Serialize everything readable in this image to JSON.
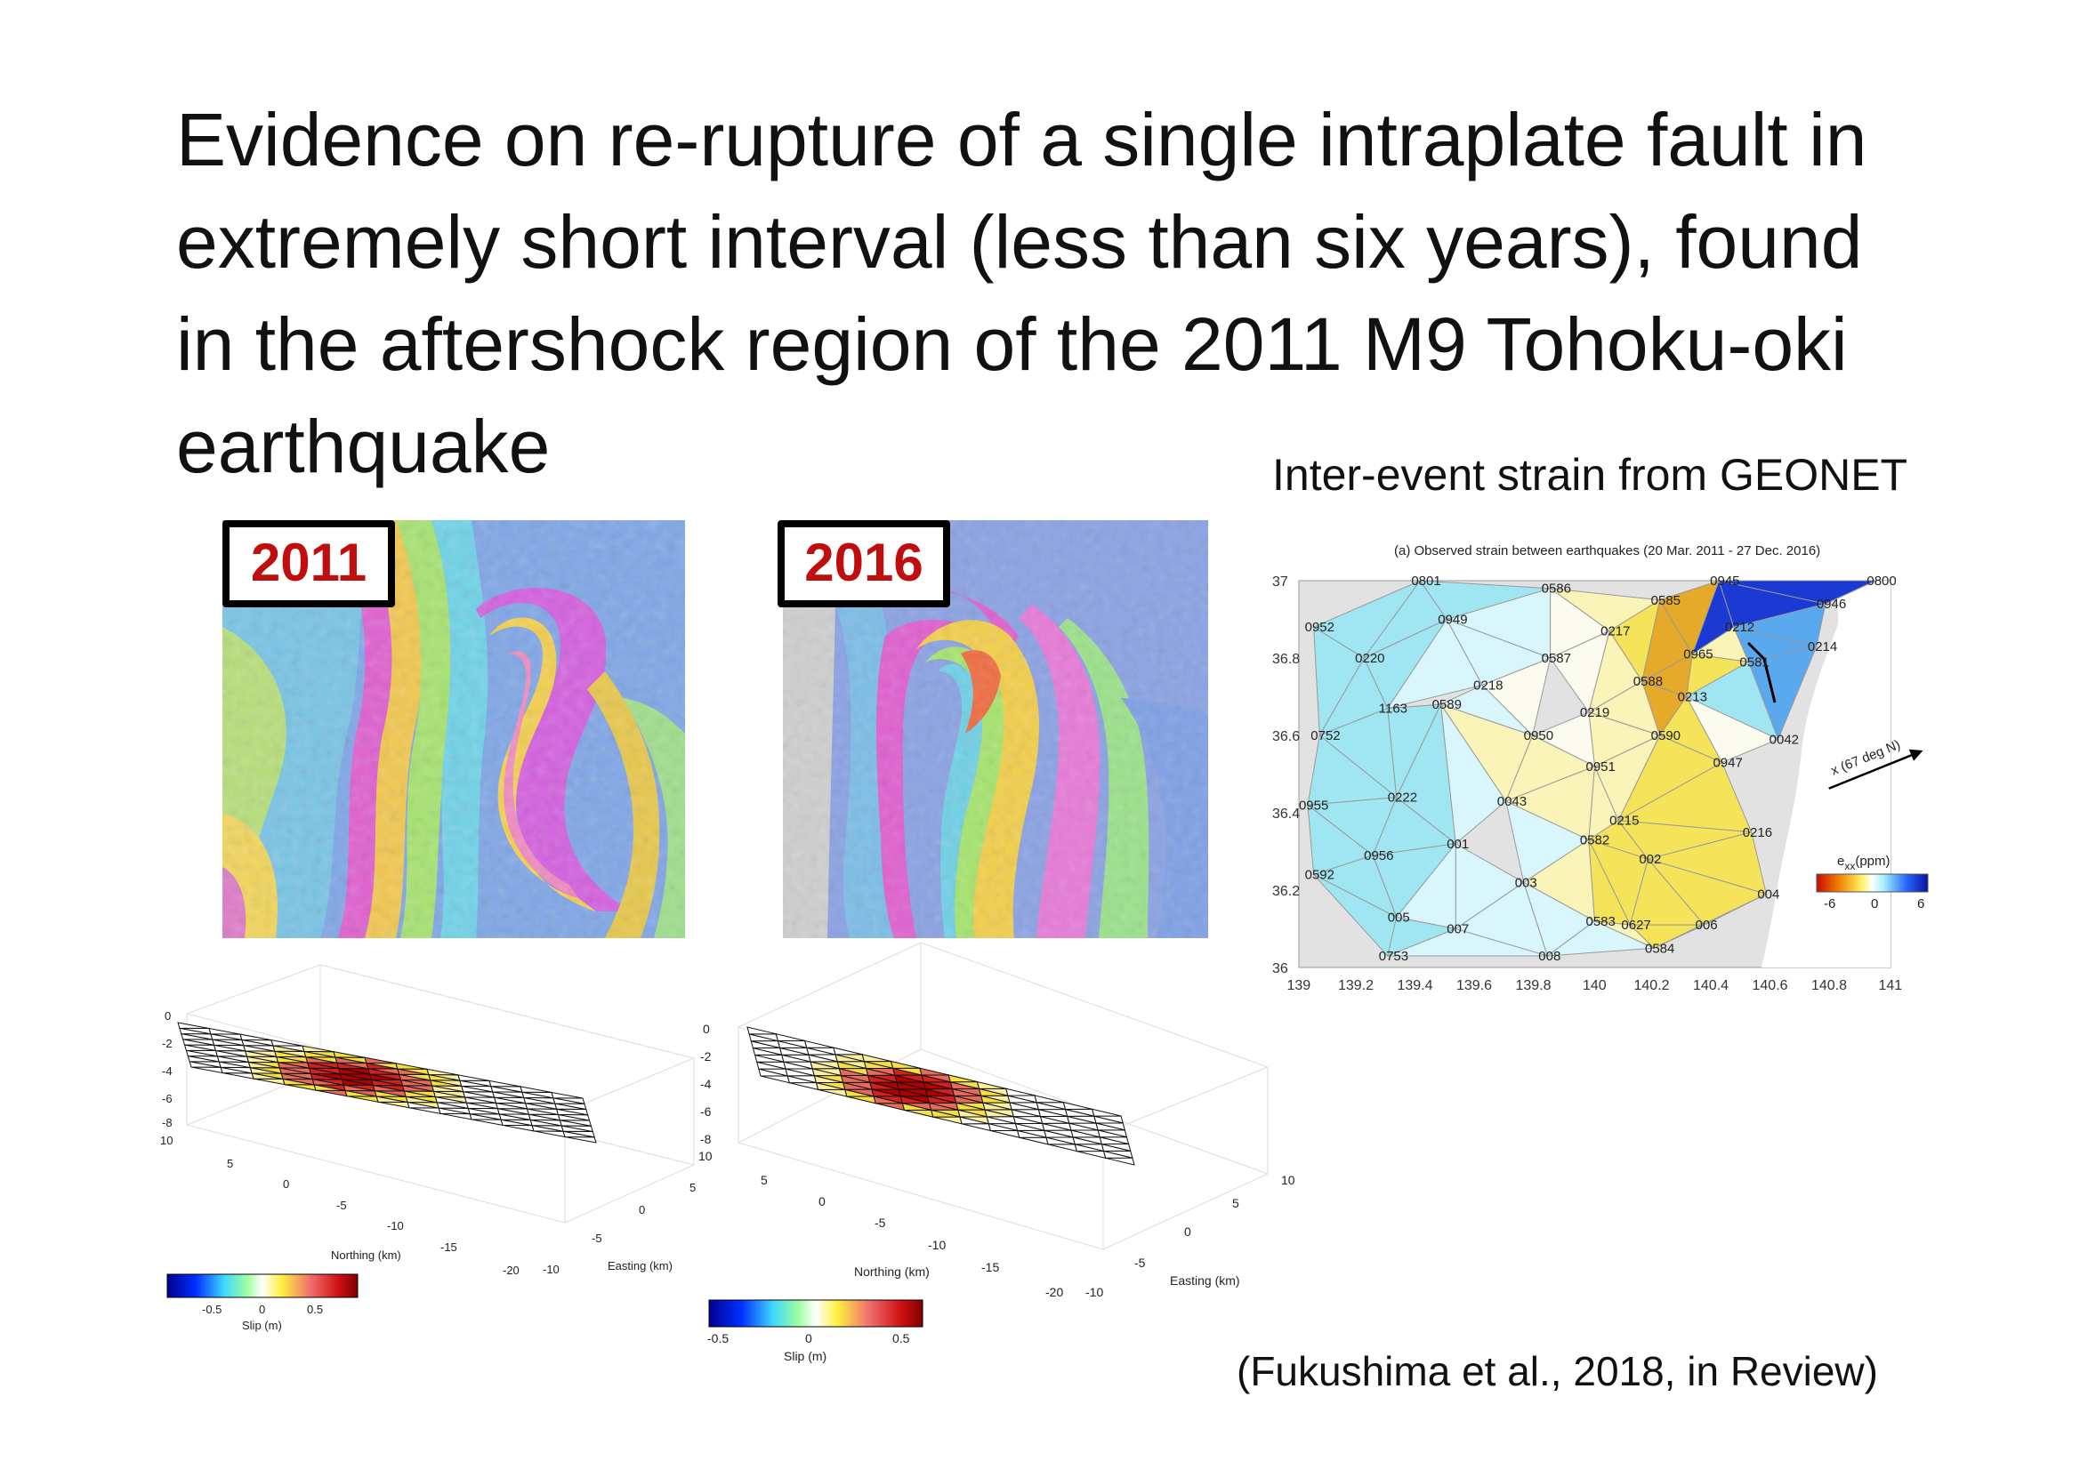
{
  "slide": {
    "title_lines": [
      "Evidence on re-rupture of a single intraplate fault in",
      "extremely short interval (less than six years), found",
      "in the aftershock region of the 2011 M9 Tohoku-oki",
      "earthquake"
    ],
    "strain_caption": "Inter-event strain from GEONET",
    "citation": "(Fukushima et al., 2018, in Review)"
  },
  "insar": {
    "left_year": "2011",
    "right_year": "2016"
  },
  "slip_models": {
    "left": {
      "z_ticks": [
        "0",
        "-2",
        "-4",
        "-6",
        "-8"
      ],
      "n_ticks": [
        "10",
        "5",
        "0",
        "-5",
        "-10",
        "-15",
        "-20"
      ],
      "e_ticks": [
        "-10",
        "-5",
        "0",
        "5"
      ],
      "northing_label": "Northing (km)",
      "easting_label": "Easting (km)",
      "colorbar_ticks": [
        "-0.5",
        "0",
        "0.5"
      ],
      "colorbar_label": "Slip (m)"
    },
    "right": {
      "z_ticks": [
        "0",
        "-2",
        "-4",
        "-6",
        "-8"
      ],
      "n_ticks": [
        "10",
        "5",
        "0",
        "-5",
        "-10",
        "-15",
        "-20"
      ],
      "e_ticks": [
        "-10",
        "-5",
        "0",
        "5",
        "10"
      ],
      "northing_label": "Northing (km)",
      "easting_label": "Easting (km)",
      "colorbar_ticks": [
        "-0.5",
        "0",
        "0.5"
      ],
      "colorbar_label": "Slip (m)"
    }
  },
  "strain_map": {
    "title": "(a) Observed strain between earthquakes (20 Mar. 2011 - 27 Dec. 2016)",
    "y_ticks": [
      "37",
      "36.8",
      "36.6",
      "36.4",
      "36.2",
      "36"
    ],
    "x_ticks": [
      "139",
      "139.2",
      "139.4",
      "139.6",
      "139.8",
      "140",
      "140.2",
      "140.4",
      "140.6",
      "140.8",
      "141"
    ],
    "direction_label": "x (67 deg N)",
    "colorbar_label": "e",
    "colorbar_sub": "xx",
    "colorbar_unit": "(ppm)",
    "colorbar_ticks": [
      "-6",
      "0",
      "6"
    ],
    "colors": {
      "low": "#d11a0a",
      "mid": "#ffffff",
      "high": "#0a1fc9"
    },
    "stations": [
      "0801",
      "0586",
      "0945",
      "0800",
      "0585",
      "0946",
      "0952",
      "0949",
      "0217",
      "0212",
      "0214",
      "0220",
      "0587",
      "0965",
      "0581",
      "0218",
      "0588",
      "1163",
      "0589",
      "0213",
      "0219",
      "0752",
      "0950",
      "0590",
      "0042",
      "0951",
      "0947",
      "0955",
      "0222",
      "0043",
      "0215",
      "0216",
      "001",
      "0582",
      "0956",
      "002",
      "0592",
      "003",
      "004",
      "005",
      "0583",
      "0627",
      "006",
      "007",
      "0584",
      "0753",
      "008"
    ]
  }
}
